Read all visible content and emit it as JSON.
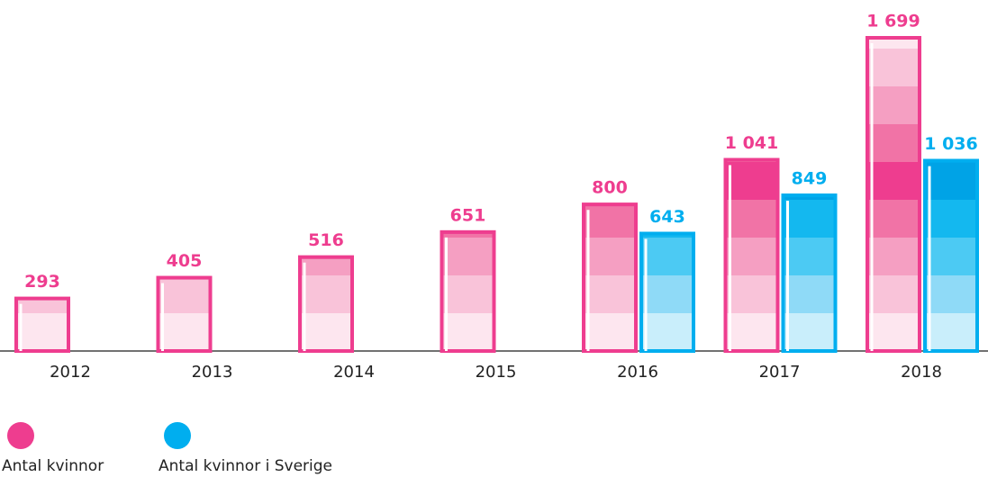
{
  "chart_data": {
    "type": "bar",
    "categories": [
      "2012",
      "2013",
      "2014",
      "2015",
      "2016",
      "2017",
      "2018"
    ],
    "series": [
      {
        "name": "Antal kvinnor",
        "color": "#ee3d8f",
        "values": [
          293,
          405,
          516,
          651,
          800,
          1041,
          1699
        ],
        "value_labels": [
          "293",
          "405",
          "516",
          "651",
          "800",
          "1 041",
          "1 699"
        ]
      },
      {
        "name": "Antal kvinnor i Sverige",
        "color": "#00aeef",
        "values": [
          null,
          null,
          null,
          null,
          643,
          849,
          1036
        ],
        "value_labels": [
          null,
          null,
          null,
          null,
          "643",
          "849",
          "1 036"
        ]
      }
    ],
    "legend": "bottom-left"
  }
}
